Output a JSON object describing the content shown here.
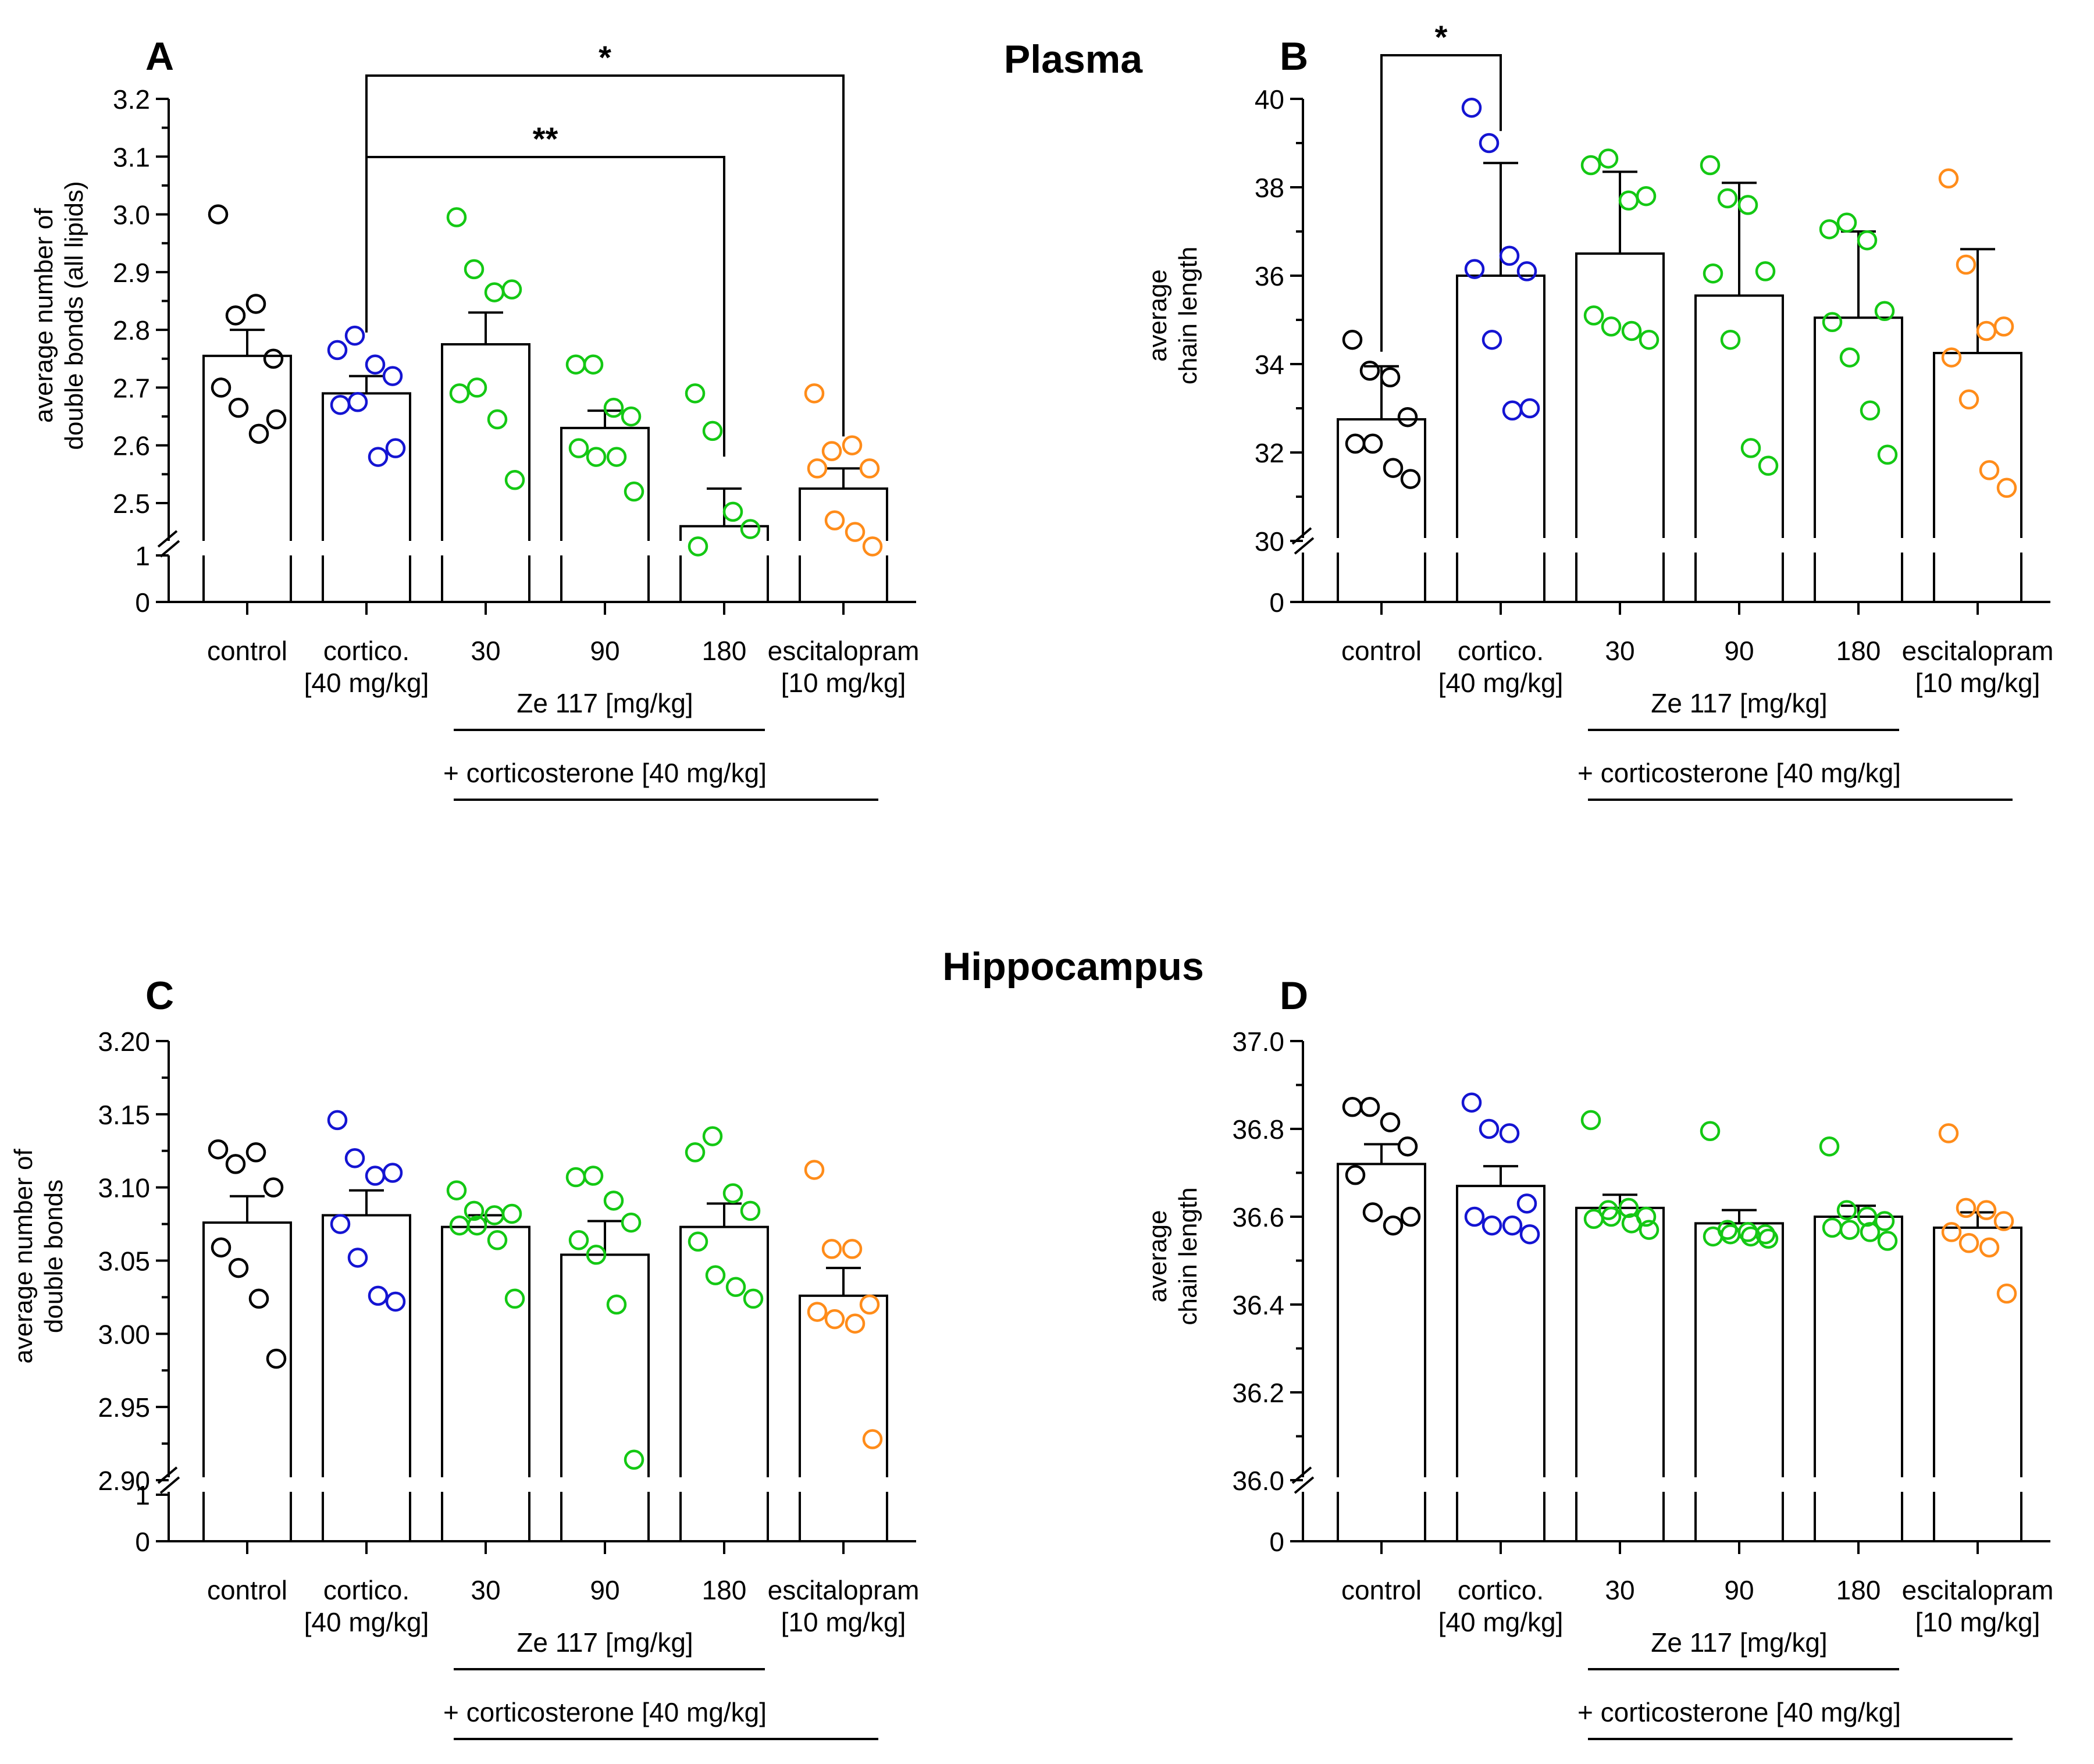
{
  "sections": {
    "plasma": "Plasma",
    "hippocampus": "Hippocampus"
  },
  "colors": {
    "control": "#000000",
    "cortico": "#1414d2",
    "ze117": "#14c814",
    "escitalopram": "#ff8c1a"
  },
  "groups": [
    {
      "label1": "control",
      "label2": "",
      "color_key": "control"
    },
    {
      "label1": "cortico.",
      "label2": "[40 mg/kg]",
      "color_key": "cortico"
    },
    {
      "label1": "30",
      "label2": "",
      "color_key": "ze117"
    },
    {
      "label1": "90",
      "label2": "",
      "color_key": "ze117"
    },
    {
      "label1": "180",
      "label2": "",
      "color_key": "ze117"
    },
    {
      "label1": "escitalopram",
      "label2": "[10 mg/kg]",
      "color_key": "escitalopram"
    }
  ],
  "group_labels": {
    "ze117": "Ze 117 [mg/kg]",
    "corticosterone": "+ corticosterone [40 mg/kg]"
  },
  "chart_data": [
    {
      "panel": "A",
      "type": "bar",
      "ylabel_lines": [
        "average number of",
        "double bonds (all lipids)"
      ],
      "ylim": [
        2.4,
        3.2
      ],
      "yticks": [
        "2.5",
        "2.6",
        "2.7",
        "2.8",
        "2.9",
        "3.0",
        "3.1",
        "3.2"
      ],
      "ytick_values": [
        2.5,
        2.6,
        2.7,
        2.8,
        2.9,
        3.0,
        3.1,
        3.2
      ],
      "axis_break": true,
      "break_ticks": [
        "1",
        "0"
      ],
      "bars": [
        2.755,
        2.69,
        2.775,
        2.63,
        2.46,
        2.525
      ],
      "sem": [
        0.045,
        0.03,
        0.055,
        0.03,
        0.065,
        0.035
      ],
      "points": [
        [
          3.0,
          2.825,
          2.845,
          2.75,
          2.7,
          2.665,
          2.62,
          2.645
        ],
        [
          2.765,
          2.79,
          2.74,
          2.72,
          2.67,
          2.675,
          2.58,
          2.595
        ],
        [
          2.995,
          2.905,
          2.865,
          2.87,
          2.69,
          2.7,
          2.645,
          2.54
        ],
        [
          2.74,
          2.74,
          2.665,
          2.65,
          2.595,
          2.58,
          2.58,
          2.52
        ],
        [
          2.69,
          2.625,
          2.485,
          2.455,
          2.425
        ],
        [
          2.69,
          2.59,
          2.6,
          2.56,
          2.56,
          2.47,
          2.45,
          2.425
        ]
      ],
      "significance": [
        {
          "label": "**",
          "from": 1,
          "to": 4,
          "level": 3.1
        },
        {
          "label": "*",
          "from": 1,
          "to": 5,
          "level": 3.25
        }
      ]
    },
    {
      "panel": "B",
      "type": "bar",
      "ylabel_lines": [
        "average",
        "chain length"
      ],
      "ylim": [
        30,
        40
      ],
      "yticks": [
        "30",
        "32",
        "34",
        "36",
        "38",
        "40"
      ],
      "ytick_values": [
        30,
        32,
        34,
        36,
        38,
        40
      ],
      "axis_break": true,
      "break_ticks": [
        "0"
      ],
      "bars": [
        32.75,
        36.0,
        36.5,
        35.55,
        35.05,
        34.25
      ],
      "sem": [
        1.2,
        2.55,
        1.85,
        2.55,
        1.95,
        2.35
      ],
      "points": [
        [
          34.55,
          33.85,
          33.7,
          32.8,
          32.2,
          32.2,
          31.65,
          31.4
        ],
        [
          39.8,
          39.0,
          36.45,
          36.1,
          36.15,
          34.55,
          32.95,
          33.0
        ],
        [
          38.5,
          38.65,
          37.7,
          37.8,
          35.1,
          34.85,
          34.75,
          34.55
        ],
        [
          38.5,
          37.75,
          37.6,
          36.1,
          36.05,
          34.55,
          32.1,
          31.7
        ],
        [
          37.05,
          37.2,
          36.8,
          35.2,
          34.95,
          34.15,
          32.95,
          31.95
        ],
        [
          38.2,
          36.25,
          34.75,
          34.85,
          34.15,
          33.2,
          31.6,
          31.2
        ]
      ],
      "significance": [
        {
          "label": "*",
          "from": 0,
          "to": 1,
          "level": 41.0
        }
      ]
    },
    {
      "panel": "C",
      "type": "bar",
      "ylabel_lines": [
        "average number of",
        "double bonds"
      ],
      "ylim": [
        2.9,
        3.2
      ],
      "yticks": [
        "2.90",
        "2.95",
        "3.00",
        "3.05",
        "3.10",
        "3.15",
        "3.20"
      ],
      "ytick_values": [
        2.9,
        2.95,
        3.0,
        3.05,
        3.1,
        3.15,
        3.2
      ],
      "axis_break": true,
      "break_ticks": [
        "1",
        "0"
      ],
      "bars": [
        3.076,
        3.081,
        3.073,
        3.054,
        3.073,
        3.026
      ],
      "sem": [
        0.018,
        0.017,
        0.008,
        0.023,
        0.016,
        0.019
      ],
      "points": [
        [
          3.126,
          3.116,
          3.124,
          3.1,
          3.059,
          3.045,
          3.024,
          2.983
        ],
        [
          3.146,
          3.12,
          3.108,
          3.11,
          3.075,
          3.052,
          3.026,
          3.022
        ],
        [
          3.098,
          3.084,
          3.081,
          3.082,
          3.074,
          3.074,
          3.064,
          3.024
        ],
        [
          3.107,
          3.108,
          3.091,
          3.076,
          3.064,
          3.054,
          3.02,
          2.914
        ],
        [
          3.124,
          3.135,
          3.096,
          3.084,
          3.063,
          3.04,
          3.032,
          3.024
        ],
        [
          3.112,
          3.058,
          3.058,
          3.02,
          3.015,
          3.01,
          3.007,
          2.928
        ]
      ],
      "significance": []
    },
    {
      "panel": "D",
      "type": "bar",
      "ylabel_lines": [
        "average",
        "chain length"
      ],
      "ylim": [
        36.0,
        37.0
      ],
      "yticks": [
        "36.0",
        "36.2",
        "36.4",
        "36.6",
        "36.8",
        "37.0"
      ],
      "ytick_values": [
        36.0,
        36.2,
        36.4,
        36.6,
        36.8,
        37.0
      ],
      "axis_break": true,
      "break_ticks": [
        "0"
      ],
      "bars": [
        36.72,
        36.67,
        36.62,
        36.585,
        36.6,
        36.575
      ],
      "sem": [
        0.045,
        0.045,
        0.03,
        0.03,
        0.025,
        0.035
      ],
      "points": [
        [
          36.85,
          36.85,
          36.815,
          36.76,
          36.695,
          36.61,
          36.58,
          36.6
        ],
        [
          36.86,
          36.8,
          36.79,
          36.63,
          36.6,
          36.58,
          36.58,
          36.56
        ],
        [
          36.82,
          36.615,
          36.62,
          36.6,
          36.595,
          36.6,
          36.585,
          36.57
        ],
        [
          36.795,
          36.57,
          36.565,
          36.56,
          36.555,
          36.56,
          36.555,
          36.55
        ],
        [
          36.76,
          36.615,
          36.6,
          36.59,
          36.575,
          36.57,
          36.565,
          36.545
        ],
        [
          36.79,
          36.62,
          36.615,
          36.59,
          36.565,
          36.54,
          36.53,
          36.425
        ]
      ],
      "significance": []
    }
  ]
}
